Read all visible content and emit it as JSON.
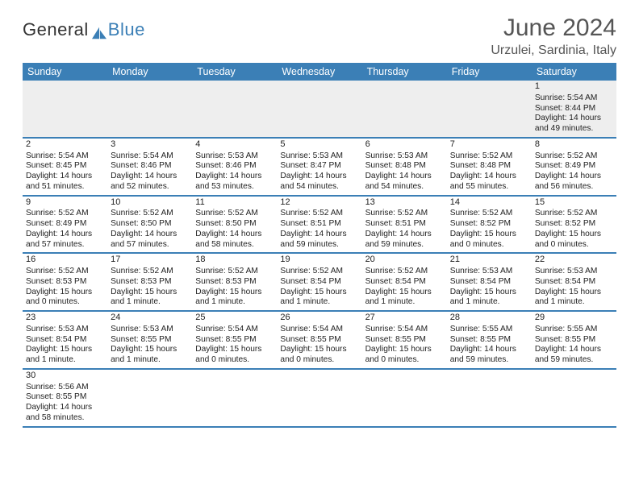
{
  "brand": {
    "part1": "General",
    "part2": "Blue",
    "icon_color": "#3b7fb6",
    "text_color": "#333333"
  },
  "title": "June 2024",
  "location": "Urzulei, Sardinia, Italy",
  "colors": {
    "header_bg": "#3b7fb6",
    "header_text": "#ffffff",
    "row_divider": "#3b7fb6",
    "blank_bg": "#eeeeee",
    "body_text": "#222222",
    "title_text": "#555555"
  },
  "weekdays": [
    "Sunday",
    "Monday",
    "Tuesday",
    "Wednesday",
    "Thursday",
    "Friday",
    "Saturday"
  ],
  "weeks": [
    [
      null,
      null,
      null,
      null,
      null,
      null,
      {
        "n": "1",
        "sr": "Sunrise: 5:54 AM",
        "ss": "Sunset: 8:44 PM",
        "d1": "Daylight: 14 hours",
        "d2": "and 49 minutes."
      }
    ],
    [
      {
        "n": "2",
        "sr": "Sunrise: 5:54 AM",
        "ss": "Sunset: 8:45 PM",
        "d1": "Daylight: 14 hours",
        "d2": "and 51 minutes."
      },
      {
        "n": "3",
        "sr": "Sunrise: 5:54 AM",
        "ss": "Sunset: 8:46 PM",
        "d1": "Daylight: 14 hours",
        "d2": "and 52 minutes."
      },
      {
        "n": "4",
        "sr": "Sunrise: 5:53 AM",
        "ss": "Sunset: 8:46 PM",
        "d1": "Daylight: 14 hours",
        "d2": "and 53 minutes."
      },
      {
        "n": "5",
        "sr": "Sunrise: 5:53 AM",
        "ss": "Sunset: 8:47 PM",
        "d1": "Daylight: 14 hours",
        "d2": "and 54 minutes."
      },
      {
        "n": "6",
        "sr": "Sunrise: 5:53 AM",
        "ss": "Sunset: 8:48 PM",
        "d1": "Daylight: 14 hours",
        "d2": "and 54 minutes."
      },
      {
        "n": "7",
        "sr": "Sunrise: 5:52 AM",
        "ss": "Sunset: 8:48 PM",
        "d1": "Daylight: 14 hours",
        "d2": "and 55 minutes."
      },
      {
        "n": "8",
        "sr": "Sunrise: 5:52 AM",
        "ss": "Sunset: 8:49 PM",
        "d1": "Daylight: 14 hours",
        "d2": "and 56 minutes."
      }
    ],
    [
      {
        "n": "9",
        "sr": "Sunrise: 5:52 AM",
        "ss": "Sunset: 8:49 PM",
        "d1": "Daylight: 14 hours",
        "d2": "and 57 minutes."
      },
      {
        "n": "10",
        "sr": "Sunrise: 5:52 AM",
        "ss": "Sunset: 8:50 PM",
        "d1": "Daylight: 14 hours",
        "d2": "and 57 minutes."
      },
      {
        "n": "11",
        "sr": "Sunrise: 5:52 AM",
        "ss": "Sunset: 8:50 PM",
        "d1": "Daylight: 14 hours",
        "d2": "and 58 minutes."
      },
      {
        "n": "12",
        "sr": "Sunrise: 5:52 AM",
        "ss": "Sunset: 8:51 PM",
        "d1": "Daylight: 14 hours",
        "d2": "and 59 minutes."
      },
      {
        "n": "13",
        "sr": "Sunrise: 5:52 AM",
        "ss": "Sunset: 8:51 PM",
        "d1": "Daylight: 14 hours",
        "d2": "and 59 minutes."
      },
      {
        "n": "14",
        "sr": "Sunrise: 5:52 AM",
        "ss": "Sunset: 8:52 PM",
        "d1": "Daylight: 15 hours",
        "d2": "and 0 minutes."
      },
      {
        "n": "15",
        "sr": "Sunrise: 5:52 AM",
        "ss": "Sunset: 8:52 PM",
        "d1": "Daylight: 15 hours",
        "d2": "and 0 minutes."
      }
    ],
    [
      {
        "n": "16",
        "sr": "Sunrise: 5:52 AM",
        "ss": "Sunset: 8:53 PM",
        "d1": "Daylight: 15 hours",
        "d2": "and 0 minutes."
      },
      {
        "n": "17",
        "sr": "Sunrise: 5:52 AM",
        "ss": "Sunset: 8:53 PM",
        "d1": "Daylight: 15 hours",
        "d2": "and 1 minute."
      },
      {
        "n": "18",
        "sr": "Sunrise: 5:52 AM",
        "ss": "Sunset: 8:53 PM",
        "d1": "Daylight: 15 hours",
        "d2": "and 1 minute."
      },
      {
        "n": "19",
        "sr": "Sunrise: 5:52 AM",
        "ss": "Sunset: 8:54 PM",
        "d1": "Daylight: 15 hours",
        "d2": "and 1 minute."
      },
      {
        "n": "20",
        "sr": "Sunrise: 5:52 AM",
        "ss": "Sunset: 8:54 PM",
        "d1": "Daylight: 15 hours",
        "d2": "and 1 minute."
      },
      {
        "n": "21",
        "sr": "Sunrise: 5:53 AM",
        "ss": "Sunset: 8:54 PM",
        "d1": "Daylight: 15 hours",
        "d2": "and 1 minute."
      },
      {
        "n": "22",
        "sr": "Sunrise: 5:53 AM",
        "ss": "Sunset: 8:54 PM",
        "d1": "Daylight: 15 hours",
        "d2": "and 1 minute."
      }
    ],
    [
      {
        "n": "23",
        "sr": "Sunrise: 5:53 AM",
        "ss": "Sunset: 8:54 PM",
        "d1": "Daylight: 15 hours",
        "d2": "and 1 minute."
      },
      {
        "n": "24",
        "sr": "Sunrise: 5:53 AM",
        "ss": "Sunset: 8:55 PM",
        "d1": "Daylight: 15 hours",
        "d2": "and 1 minute."
      },
      {
        "n": "25",
        "sr": "Sunrise: 5:54 AM",
        "ss": "Sunset: 8:55 PM",
        "d1": "Daylight: 15 hours",
        "d2": "and 0 minutes."
      },
      {
        "n": "26",
        "sr": "Sunrise: 5:54 AM",
        "ss": "Sunset: 8:55 PM",
        "d1": "Daylight: 15 hours",
        "d2": "and 0 minutes."
      },
      {
        "n": "27",
        "sr": "Sunrise: 5:54 AM",
        "ss": "Sunset: 8:55 PM",
        "d1": "Daylight: 15 hours",
        "d2": "and 0 minutes."
      },
      {
        "n": "28",
        "sr": "Sunrise: 5:55 AM",
        "ss": "Sunset: 8:55 PM",
        "d1": "Daylight: 14 hours",
        "d2": "and 59 minutes."
      },
      {
        "n": "29",
        "sr": "Sunrise: 5:55 AM",
        "ss": "Sunset: 8:55 PM",
        "d1": "Daylight: 14 hours",
        "d2": "and 59 minutes."
      }
    ],
    [
      {
        "n": "30",
        "sr": "Sunrise: 5:56 AM",
        "ss": "Sunset: 8:55 PM",
        "d1": "Daylight: 14 hours",
        "d2": "and 58 minutes."
      },
      null,
      null,
      null,
      null,
      null,
      null
    ]
  ]
}
